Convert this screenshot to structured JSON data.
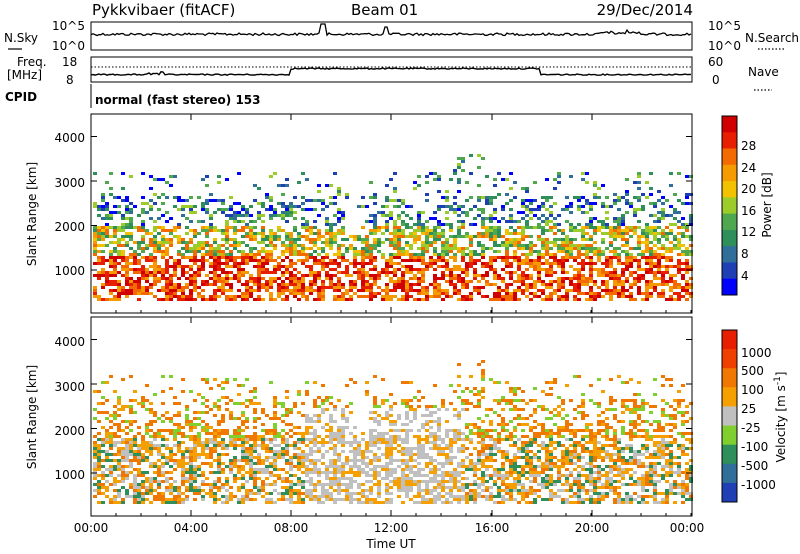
{
  "header": {
    "station": "Pykkvibaer (fitACF)",
    "beam": "Beam 01",
    "date": "29/Dec/2014"
  },
  "top_panels": {
    "nsky_label": "N.Sky",
    "nsky_ticks": [
      "10^5",
      "10^0"
    ],
    "nsearch_label": "N.Search",
    "nsearch_ticks": [
      "10^5",
      "10^0"
    ],
    "freq_label_1": "Freq.",
    "freq_label_2": "[MHz]",
    "freq_ticks": [
      "18",
      "8"
    ],
    "nave_label": "Nave",
    "nave_ticks": [
      "60",
      "0"
    ],
    "cpid_label": "CPID",
    "cpid_text": "normal (fast stereo) 153"
  },
  "chart_data": [
    {
      "type": "heatmap",
      "ylabel": "Slant Range [km]",
      "ylim": [
        180,
        4500
      ],
      "yticks": [
        "1000",
        "2000",
        "3000",
        "4000"
      ],
      "xlim": [
        "00:00",
        "24:00"
      ],
      "colorbar_label": "Power [dB]",
      "colorbar_ticks": [
        "28",
        "24",
        "20",
        "16",
        "12",
        "8",
        "4"
      ],
      "colorscale": [
        "#0000ff",
        "#1f3fb5",
        "#2f6f9a",
        "#2f8f5a",
        "#4fa84f",
        "#9ccc2a",
        "#f2c200",
        "#f59a00",
        "#f36a00",
        "#e81e00",
        "#d00000"
      ],
      "scattered_echo_bands_km": [
        [
          300,
          1400
        ],
        [
          1400,
          2200
        ],
        [
          2700,
          3200
        ]
      ]
    },
    {
      "type": "heatmap",
      "ylabel": "Slant Range [km]",
      "ylim": [
        180,
        4500
      ],
      "yticks": [
        "1000",
        "2000",
        "3000",
        "4000"
      ],
      "xlim": [
        "00:00",
        "24:00"
      ],
      "xlabel": "Time UT",
      "xticks": [
        "00:00",
        "04:00",
        "08:00",
        "12:00",
        "16:00",
        "20:00",
        "00:00"
      ],
      "colorbar_label_parts": [
        "Velocity [m s",
        "-1",
        "]"
      ],
      "colorbar_ticks": [
        "1000",
        "500",
        "100",
        "25",
        "-25",
        "-100",
        "-500",
        "-1000"
      ],
      "colorscale": [
        "#1f3fb5",
        "#2f6f9a",
        "#2f8f5a",
        "#7fcf2f",
        "#c0c0c0",
        "#f5a000",
        "#f07800",
        "#f04000",
        "#e81e00"
      ]
    }
  ]
}
